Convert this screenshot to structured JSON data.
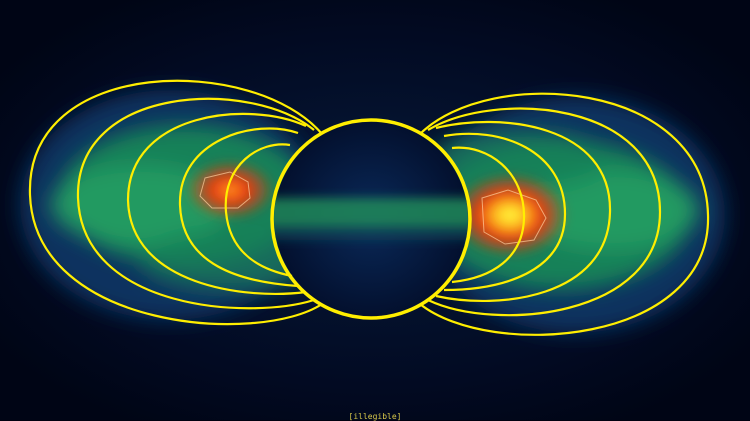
{
  "image": {
    "subject": "radiation-belt-intensity-map",
    "colors": {
      "background": "#000a1e",
      "low": "#0b3a6a",
      "mid": "#1fa060",
      "high": "#e23a12",
      "peak": "#ffff30",
      "field_lines": "#ffee00"
    }
  },
  "caption": "[illegible]"
}
